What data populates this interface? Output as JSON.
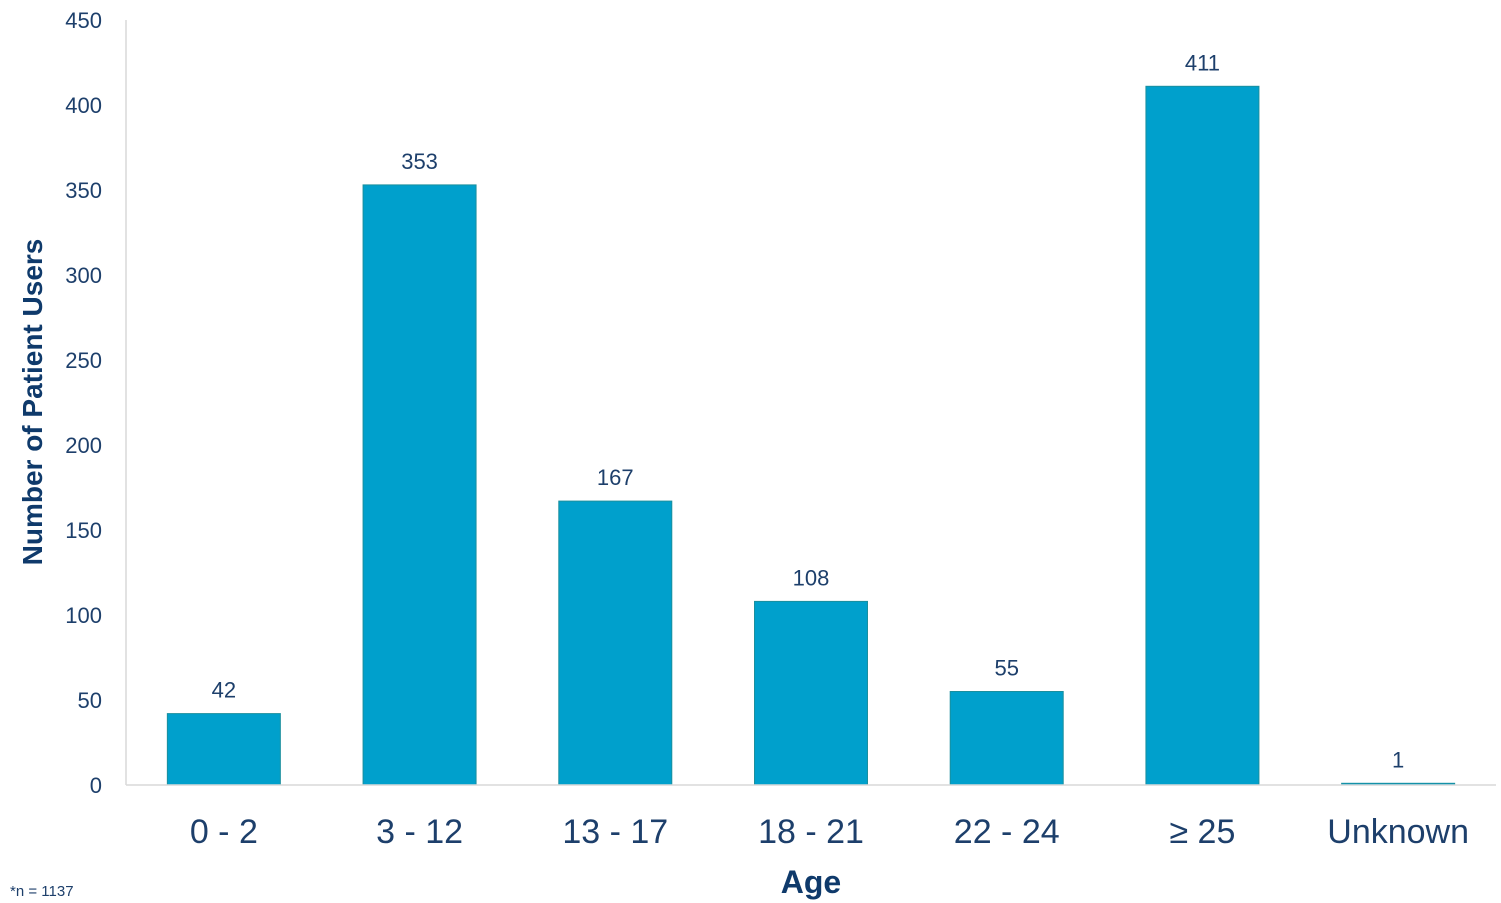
{
  "chart_data": {
    "type": "bar",
    "categories": [
      "0 - 2",
      "3 - 12",
      "13 - 17",
      "18 - 21",
      "22 - 24",
      "≥ 25",
      "Unknown"
    ],
    "values": [
      42,
      353,
      167,
      108,
      55,
      411,
      1
    ],
    "data_labels": [
      "42",
      "353",
      "167",
      "108",
      "55",
      "411",
      "1"
    ],
    "xlabel": "Age",
    "ylabel": "Number of Patient Users",
    "ylim": [
      0,
      450
    ],
    "yticks": [
      0,
      50,
      100,
      150,
      200,
      250,
      300,
      350,
      400,
      450
    ],
    "grid": false,
    "legend": "none",
    "bar_color": "#00a0cc",
    "text_color": "#1d3f6b"
  },
  "footnote": "*n = 1137"
}
